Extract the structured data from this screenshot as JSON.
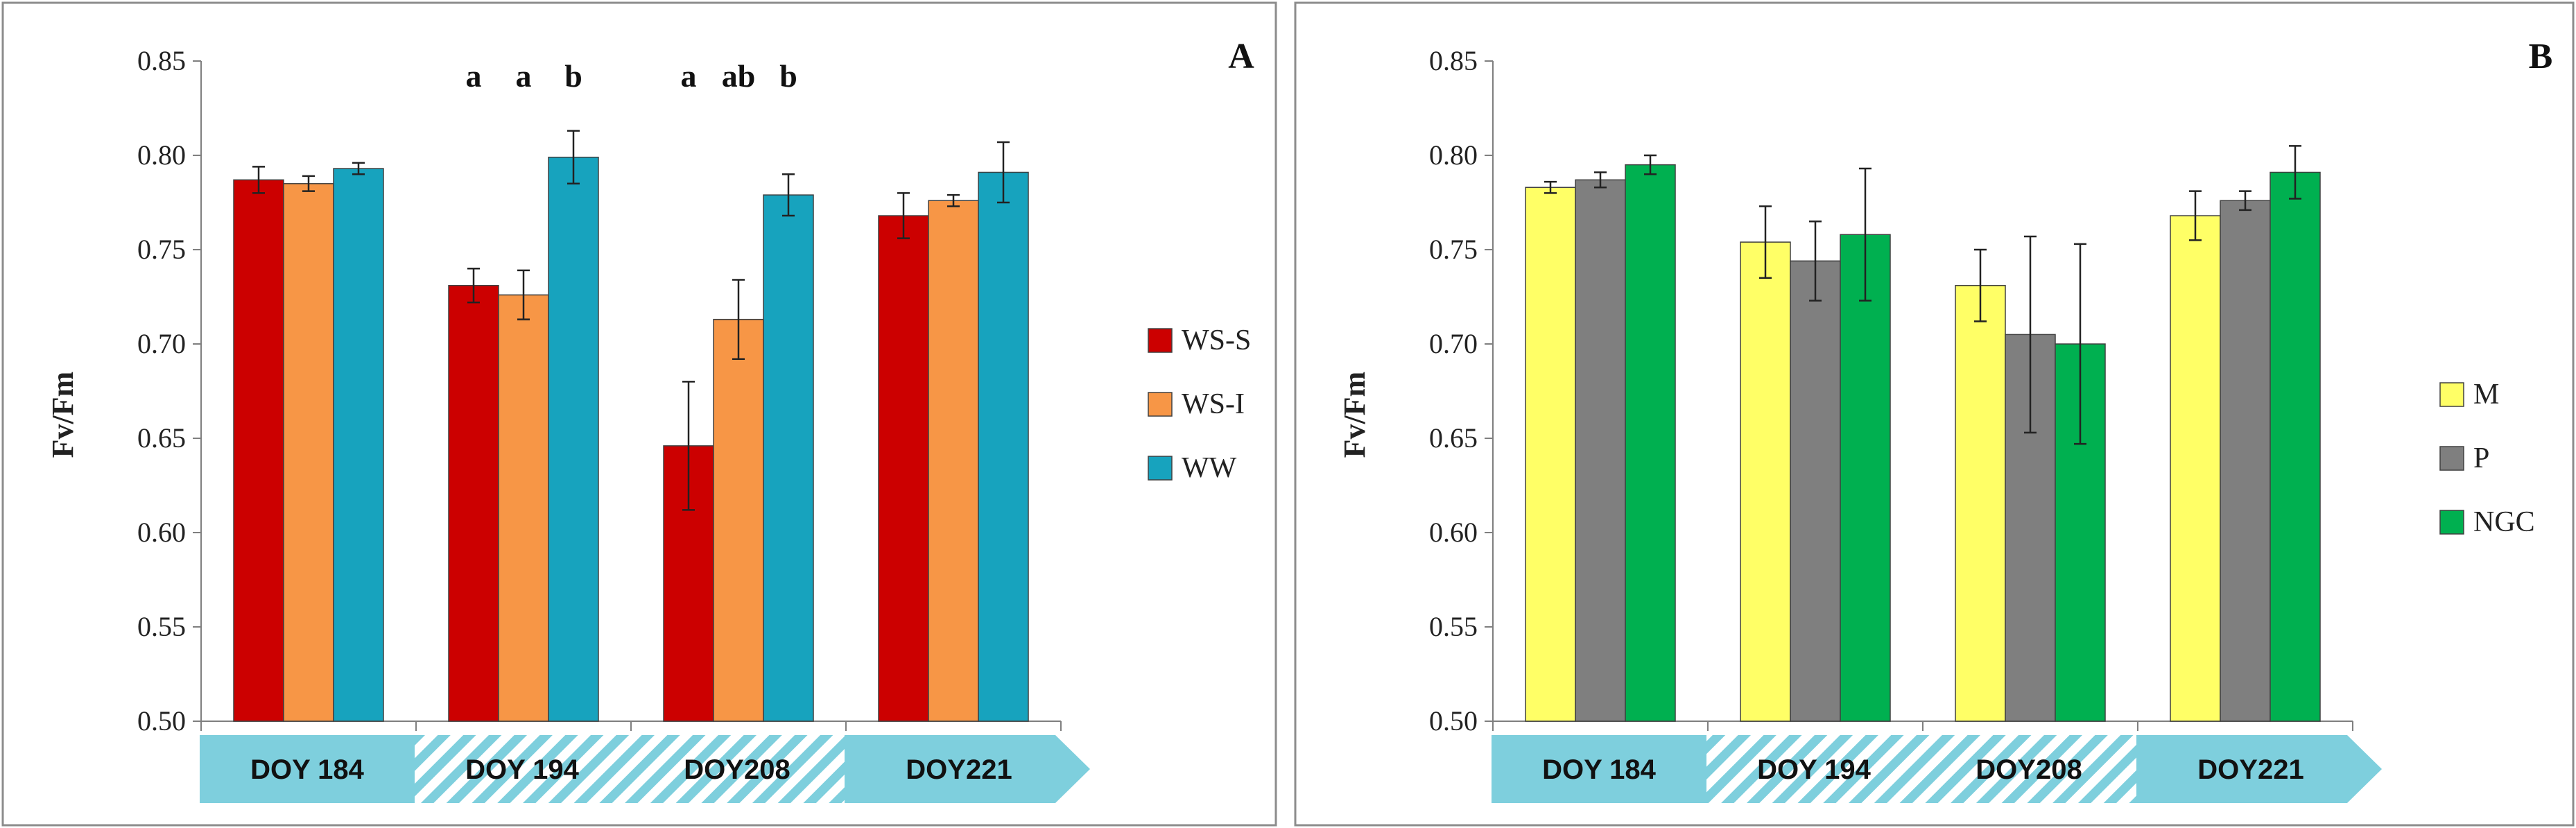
{
  "chart_data": [
    {
      "panel": "A",
      "type": "bar",
      "ylabel": "Fv/Fm",
      "ylim": [
        0.5,
        0.85
      ],
      "yticks": [
        "0.50",
        "0.55",
        "0.60",
        "0.65",
        "0.70",
        "0.75",
        "0.80",
        "0.85"
      ],
      "categories": [
        "DOY 184",
        "DOY 194",
        "DOY208",
        "DOY221"
      ],
      "series": [
        {
          "name": "WS-S",
          "color": "#cc0000",
          "values": [
            0.787,
            0.731,
            0.646,
            0.768
          ],
          "errors": [
            0.007,
            0.009,
            0.034,
            0.012
          ]
        },
        {
          "name": "WS-I",
          "color": "#f79646",
          "values": [
            0.785,
            0.726,
            0.713,
            0.776
          ],
          "errors": [
            0.004,
            0.013,
            0.021,
            0.003
          ]
        },
        {
          "name": "WW",
          "color": "#17a3be",
          "values": [
            0.793,
            0.799,
            0.779,
            0.791
          ],
          "errors": [
            0.003,
            0.014,
            0.011,
            0.016
          ]
        }
      ],
      "significance": [
        {
          "category": "DOY 194",
          "labels": [
            "a",
            "a",
            "b"
          ]
        },
        {
          "category": "DOY208",
          "labels": [
            "a",
            "ab",
            "b"
          ]
        }
      ],
      "legend_position": "right"
    },
    {
      "panel": "B",
      "type": "bar",
      "ylabel": "Fv/Fm",
      "ylim": [
        0.5,
        0.85
      ],
      "yticks": [
        "0.50",
        "0.55",
        "0.60",
        "0.65",
        "0.70",
        "0.75",
        "0.80",
        "0.85"
      ],
      "categories": [
        "DOY 184",
        "DOY 194",
        "DOY208",
        "DOY221"
      ],
      "series": [
        {
          "name": "M",
          "color": "#ffff66",
          "values": [
            0.783,
            0.754,
            0.731,
            0.768
          ],
          "errors": [
            0.003,
            0.019,
            0.019,
            0.013
          ]
        },
        {
          "name": "P",
          "color": "#7f7f7f",
          "values": [
            0.787,
            0.744,
            0.705,
            0.776
          ],
          "errors": [
            0.004,
            0.021,
            0.052,
            0.005
          ]
        },
        {
          "name": "NGC",
          "color": "#00b050",
          "values": [
            0.795,
            0.758,
            0.7,
            0.791
          ],
          "errors": [
            0.005,
            0.035,
            0.053,
            0.014
          ]
        }
      ],
      "legend_position": "right"
    }
  ],
  "colors": {
    "doy_fill": "#7ecfdd",
    "doy_stripe": "#e6f5f8"
  }
}
